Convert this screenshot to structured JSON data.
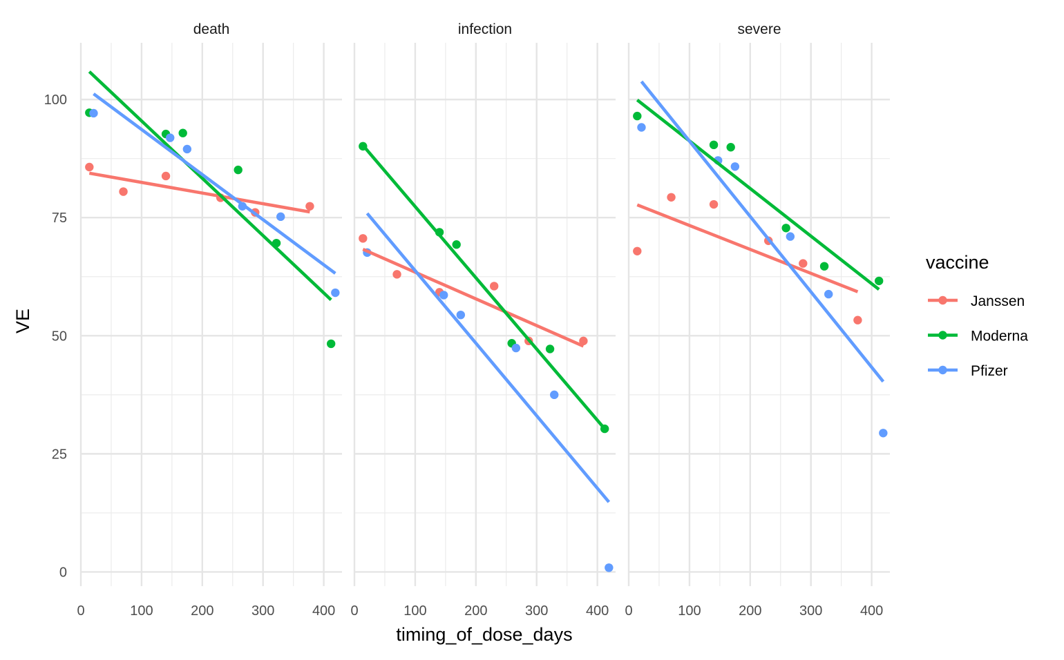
{
  "chart_data": {
    "type": "scatter",
    "subtype": "faceted scatter with linear fit lines",
    "xlabel": "timing_of_dose_days",
    "ylabel": "VE",
    "xlim": [
      0,
      430
    ],
    "ylim": [
      -3,
      112
    ],
    "x_ticks": [
      0,
      100,
      200,
      300,
      400
    ],
    "y_ticks": [
      0,
      25,
      50,
      75,
      100
    ],
    "legend": {
      "title": "vaccine",
      "placement": "right",
      "entries": [
        {
          "name": "Janssen",
          "color": "#F8766D"
        },
        {
          "name": "Moderna",
          "color": "#00BA38"
        },
        {
          "name": "Pfizer",
          "color": "#619CFF"
        }
      ]
    },
    "facets": [
      {
        "label": "death",
        "series": [
          {
            "name": "Janssen",
            "points": [
              [
                14,
                85.7
              ],
              [
                70,
                80.5
              ],
              [
                140,
                83.8
              ],
              [
                230,
                79.2
              ],
              [
                287,
                76.1
              ],
              [
                377,
                77.4
              ]
            ],
            "fit": [
              [
                14,
                84.4
              ],
              [
                377,
                76.2
              ]
            ]
          },
          {
            "name": "Moderna",
            "points": [
              [
                14,
                97.2
              ],
              [
                140,
                92.7
              ],
              [
                168,
                92.9
              ],
              [
                259,
                85.1
              ],
              [
                322,
                69.6
              ],
              [
                412,
                48.3
              ]
            ],
            "fit": [
              [
                14,
                105.9
              ],
              [
                412,
                57.6
              ]
            ]
          },
          {
            "name": "Pfizer",
            "points": [
              [
                21,
                97.1
              ],
              [
                147,
                91.9
              ],
              [
                175,
                89.5
              ],
              [
                266,
                77.4
              ],
              [
                329,
                75.2
              ],
              [
                419,
                59.1
              ]
            ],
            "fit": [
              [
                21,
                101.2
              ],
              [
                419,
                63.2
              ]
            ]
          }
        ]
      },
      {
        "label": "infection",
        "series": [
          {
            "name": "Janssen",
            "points": [
              [
                14,
                70.6
              ],
              [
                70,
                63.0
              ],
              [
                140,
                59.2
              ],
              [
                230,
                60.5
              ],
              [
                287,
                48.9
              ],
              [
                377,
                48.9
              ]
            ],
            "fit": [
              [
                14,
                68.3
              ],
              [
                377,
                47.8
              ]
            ]
          },
          {
            "name": "Moderna",
            "points": [
              [
                14,
                90.1
              ],
              [
                140,
                71.9
              ],
              [
                168,
                69.3
              ],
              [
                259,
                48.4
              ],
              [
                322,
                47.2
              ],
              [
                412,
                30.3
              ]
            ],
            "fit": [
              [
                14,
                90.3
              ],
              [
                412,
                30.3
              ]
            ]
          },
          {
            "name": "Pfizer",
            "points": [
              [
                21,
                67.6
              ],
              [
                147,
                58.6
              ],
              [
                175,
                54.4
              ],
              [
                266,
                47.4
              ],
              [
                329,
                37.5
              ],
              [
                419,
                0.9
              ]
            ],
            "fit": [
              [
                21,
                75.9
              ],
              [
                419,
                14.8
              ]
            ]
          }
        ]
      },
      {
        "label": "severe",
        "series": [
          {
            "name": "Janssen",
            "points": [
              [
                14,
                67.9
              ],
              [
                70,
                79.3
              ],
              [
                140,
                77.8
              ],
              [
                230,
                70.1
              ],
              [
                287,
                65.3
              ],
              [
                377,
                53.3
              ]
            ],
            "fit": [
              [
                14,
                77.7
              ],
              [
                377,
                59.3
              ]
            ]
          },
          {
            "name": "Moderna",
            "points": [
              [
                14,
                96.5
              ],
              [
                140,
                90.4
              ],
              [
                168,
                89.9
              ],
              [
                259,
                72.8
              ],
              [
                322,
                64.7
              ],
              [
                412,
                61.6
              ]
            ],
            "fit": [
              [
                14,
                99.9
              ],
              [
                412,
                59.8
              ]
            ]
          },
          {
            "name": "Pfizer",
            "points": [
              [
                21,
                94.1
              ],
              [
                147,
                87.1
              ],
              [
                175,
                85.8
              ],
              [
                266,
                71.0
              ],
              [
                329,
                58.8
              ],
              [
                419,
                29.4
              ]
            ],
            "fit": [
              [
                21,
                103.8
              ],
              [
                419,
                40.3
              ]
            ]
          }
        ]
      }
    ]
  }
}
